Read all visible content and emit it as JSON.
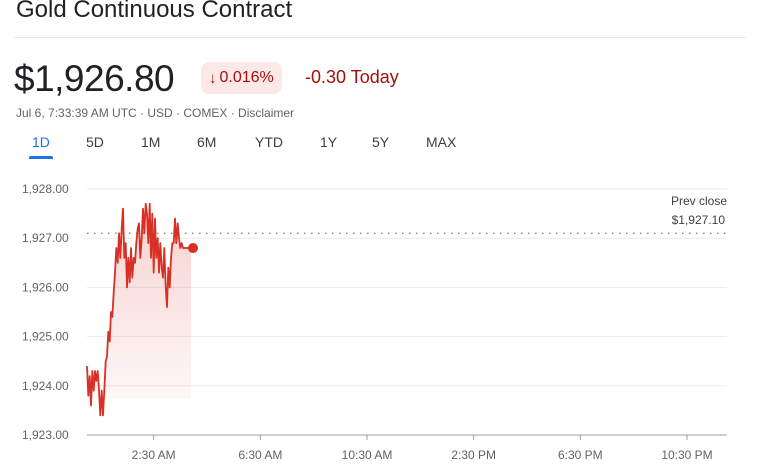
{
  "header": {
    "title": "Gold Continuous Contract",
    "price": "$1,926.80",
    "change_percent": "0.016%",
    "change_arrow_icon": "arrow-down-icon",
    "change_today": "-0.30 Today",
    "meta": "Jul 6, 7:33:39 AM UTC · USD · COMEX · Disclaimer"
  },
  "tabs": [
    {
      "label": "1D",
      "active": true
    },
    {
      "label": "5D",
      "active": false
    },
    {
      "label": "1M",
      "active": false
    },
    {
      "label": "6M",
      "active": false
    },
    {
      "label": "YTD",
      "active": false
    },
    {
      "label": "1Y",
      "active": false
    },
    {
      "label": "5Y",
      "active": false
    },
    {
      "label": "MAX",
      "active": false
    }
  ],
  "chart": {
    "prev_close_label": "Prev close",
    "prev_close_value": "$1,927.10",
    "y_tick_labels": [
      "1,928.00",
      "1,927.00",
      "1,926.00",
      "1,925.00",
      "1,924.00",
      "1,923.00"
    ],
    "x_tick_labels": [
      "2:30 AM",
      "6:30 AM",
      "10:30 AM",
      "2:30 PM",
      "6:30 PM",
      "10:30 PM"
    ]
  },
  "colors": {
    "line": "#d93025",
    "negative": "#a50e0e",
    "accent": "#1a73e8"
  },
  "chart_data": {
    "type": "line",
    "title": "",
    "xlabel": "",
    "ylabel": "",
    "ylim": [
      1923.0,
      1928.0
    ],
    "x_domain_hours": [
      0,
      24
    ],
    "prev_close": 1927.1,
    "last_value": 1926.8,
    "series": [
      {
        "x": [
          0.0,
          0.05,
          0.1,
          0.15,
          0.2,
          0.25,
          0.3,
          0.35,
          0.4,
          0.45,
          0.5,
          0.55,
          0.6,
          0.65,
          0.7,
          0.75,
          0.8,
          0.85,
          0.9,
          0.95,
          1.0,
          1.05,
          1.1,
          1.15,
          1.2,
          1.25,
          1.3,
          1.35,
          1.4,
          1.45,
          1.5,
          1.55,
          1.6,
          1.65,
          1.7,
          1.75,
          1.8,
          1.85,
          1.9,
          1.95,
          2.0,
          2.05,
          2.1,
          2.15,
          2.2,
          2.25,
          2.3,
          2.35,
          2.4,
          2.45,
          2.5,
          2.55,
          2.6,
          2.65,
          2.7,
          2.75,
          2.8,
          2.85,
          2.9,
          2.95,
          3.0,
          3.05,
          3.1,
          3.15,
          3.2,
          3.25,
          3.3,
          3.35,
          3.4,
          3.45,
          3.5,
          3.55,
          3.6,
          3.65,
          3.7,
          3.75,
          3.8,
          3.85,
          3.9
        ],
        "y": [
          1924.4,
          1923.8,
          1924.2,
          1923.6,
          1924.3,
          1923.9,
          1924.3,
          1924.1,
          1924.3,
          1923.9,
          1923.4,
          1923.9,
          1923.4,
          1923.9,
          1924.5,
          1924.6,
          1925.1,
          1924.9,
          1925.5,
          1925.4,
          1925.9,
          1926.3,
          1926.8,
          1926.5,
          1927.1,
          1926.6,
          1927.2,
          1927.6,
          1926.6,
          1926.9,
          1926.0,
          1926.6,
          1926.1,
          1926.8,
          1926.2,
          1926.6,
          1926.5,
          1926.9,
          1927.2,
          1927.3,
          1926.6,
          1927.0,
          1927.6,
          1927.1,
          1927.7,
          1927.5,
          1926.9,
          1927.7,
          1926.6,
          1927.5,
          1926.3,
          1927.4,
          1926.6,
          1927.0,
          1926.3,
          1926.9,
          1926.4,
          1926.2,
          1926.8,
          1926.0,
          1925.6,
          1926.4,
          1926.0,
          1926.6,
          1926.9,
          1926.9,
          1927.4,
          1926.9,
          1927.3,
          1927.0,
          1926.8,
          1926.9,
          1926.8,
          1926.8,
          1926.8,
          1926.8,
          1926.8,
          1926.8,
          1926.8
        ]
      }
    ],
    "grid": true,
    "legend": "none"
  }
}
